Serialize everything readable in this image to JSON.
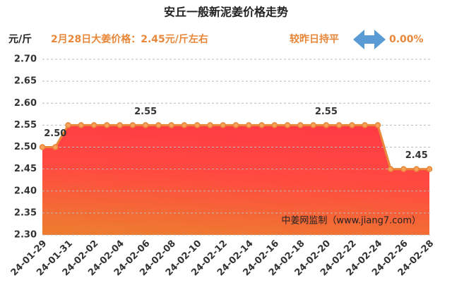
{
  "chart_data": {
    "type": "area",
    "title": "安丘一般新泥姜价格走势",
    "y_label": "元/斤",
    "annotations": [
      "2月28日大姜价格：2.45元/斤左右",
      "较昨日持平",
      "0.00%",
      "中姜网监制（www.jiang7.com）"
    ],
    "categories": [
      "24-01-29",
      null,
      "24-01-31",
      null,
      "24-02-02",
      null,
      "24-02-04",
      null,
      "24-02-06",
      null,
      "24-02-08",
      null,
      "24-02-10",
      null,
      "24-02-12",
      null,
      "24-02-14",
      null,
      "24-02-16",
      null,
      "24-02-18",
      null,
      "24-02-20",
      null,
      "24-02-22",
      null,
      "24-02-24",
      null,
      "24-02-26",
      null,
      "24-02-28"
    ],
    "values": [
      2.5,
      2.5,
      2.55,
      2.55,
      2.55,
      2.55,
      2.55,
      2.55,
      2.55,
      2.55,
      2.55,
      2.55,
      2.55,
      2.55,
      2.55,
      2.55,
      2.55,
      2.55,
      2.55,
      2.55,
      2.55,
      2.55,
      2.55,
      2.55,
      2.55,
      2.55,
      2.55,
      2.45,
      2.45,
      2.45,
      2.45
    ],
    "value_labels": [
      null,
      "2.50",
      null,
      null,
      null,
      null,
      null,
      null,
      "2.55",
      null,
      null,
      null,
      null,
      null,
      null,
      null,
      null,
      null,
      null,
      null,
      null,
      null,
      "2.55",
      null,
      null,
      null,
      null,
      null,
      null,
      "2.45",
      null
    ],
    "color": "#e8873a",
    "ylim": [
      2.3,
      2.7
    ],
    "yticks": [
      {
        "value": 2.3,
        "label": "2.30"
      },
      2.35,
      {
        "value": 2.4,
        "label": "2.40"
      },
      2.45,
      {
        "value": 2.5,
        "label": "2.50"
      },
      2.55,
      {
        "value": 2.6,
        "label": "2.60"
      },
      2.65,
      {
        "value": 2.7,
        "label": "2.70"
      }
    ],
    "grid": true
  }
}
